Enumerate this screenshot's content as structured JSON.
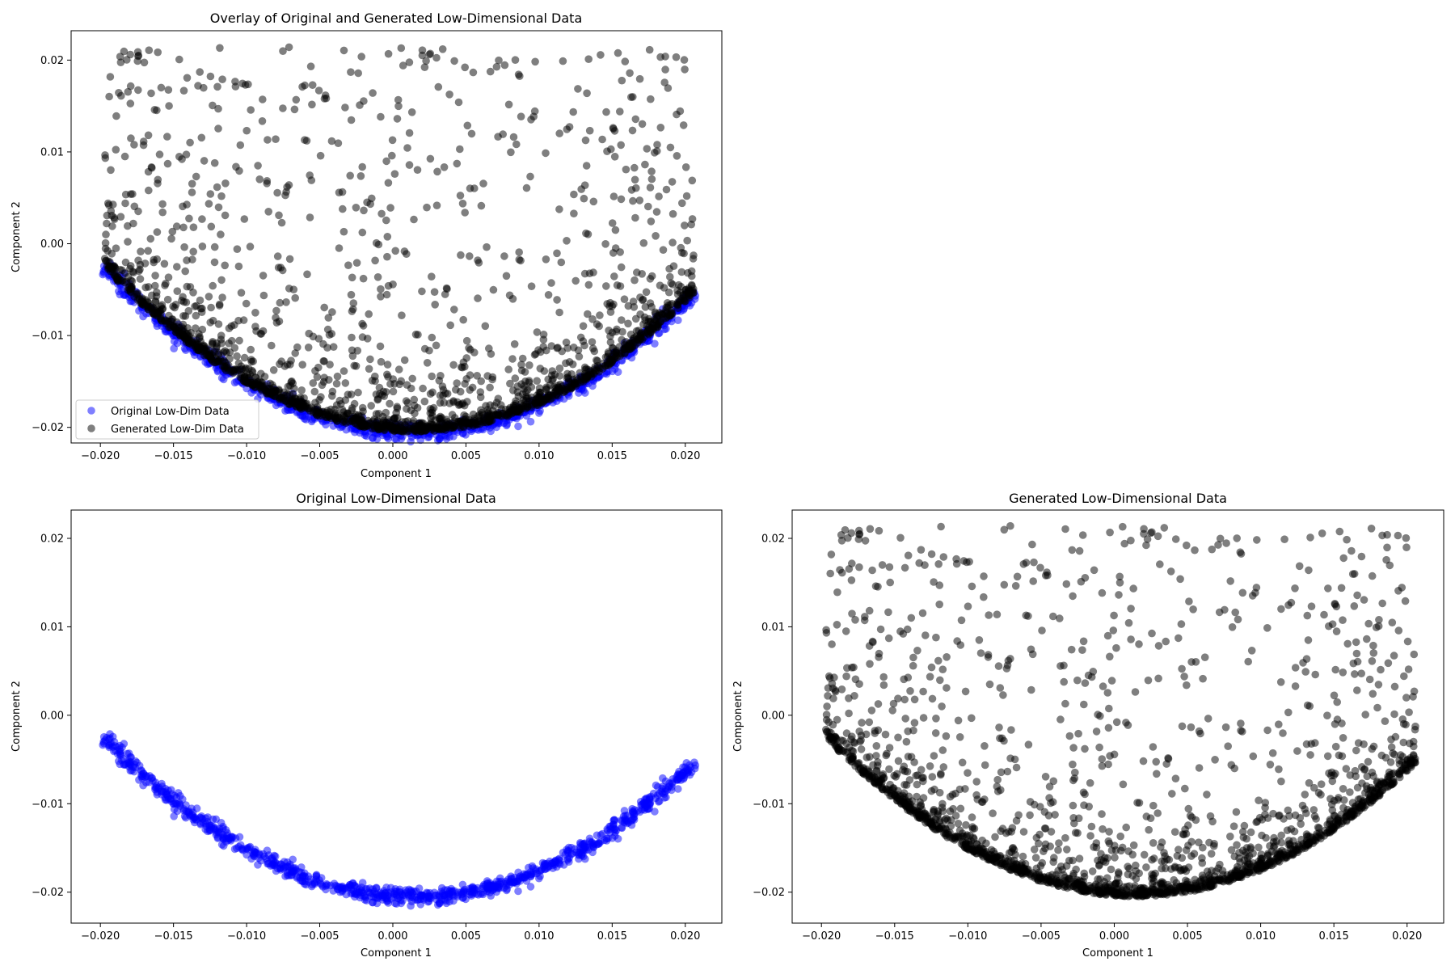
{
  "figure": {
    "background": "#ffffff"
  },
  "chart_data": [
    {
      "type": "scatter",
      "id": "overlay",
      "title": "Overlay of Original and Generated Low-Dimensional Data",
      "xlabel": "Component 1",
      "ylabel": "Component 2",
      "xlim": [
        -0.022,
        0.0225
      ],
      "ylim": [
        -0.0217,
        0.0232
      ],
      "xticks": [
        "−0.020",
        "−0.015",
        "−0.010",
        "−0.005",
        "0.000",
        "0.005",
        "0.010",
        "0.015",
        "0.020"
      ],
      "xtick_values": [
        -0.02,
        -0.015,
        -0.01,
        -0.005,
        0,
        0.005,
        0.01,
        0.015,
        0.02
      ],
      "yticks": [
        "−0.02",
        "−0.01",
        "0.00",
        "0.01",
        "0.02"
      ],
      "ytick_values": [
        -0.02,
        -0.01,
        0,
        0.01,
        0.02
      ],
      "legend": {
        "placement": "lower-left",
        "entries": [
          "Original Low-Dim Data",
          "Generated Low-Dim Data"
        ]
      },
      "series": [
        {
          "name": "Original Low-Dim Data",
          "color": "#0000ff",
          "alpha": 0.5,
          "sample_count": 900,
          "shape": "parabolic band, vertex near (0.0015, -0.0205), ends at (-0.0198, 0.0202) and (0.0206, 0.0228)"
        },
        {
          "name": "Generated Low-Dim Data",
          "color": "#000000",
          "alpha": 0.5,
          "sample_count": 2000,
          "shape": "dense along the same curve plus scatter filling the region above it up to y ≈ 0.021"
        }
      ],
      "grid": false
    },
    {
      "type": "scatter",
      "id": "original",
      "title": "Original Low-Dimensional Data",
      "xlabel": "Component 1",
      "ylabel": "Component 2",
      "xlim": [
        -0.022,
        0.0225
      ],
      "ylim": [
        -0.0235,
        0.0232
      ],
      "xticks": [
        "−0.020",
        "−0.015",
        "−0.010",
        "−0.005",
        "0.000",
        "0.005",
        "0.010",
        "0.015",
        "0.020"
      ],
      "xtick_values": [
        -0.02,
        -0.015,
        -0.01,
        -0.005,
        0,
        0.005,
        0.01,
        0.015,
        0.02
      ],
      "yticks": [
        "−0.02",
        "−0.01",
        "0.00",
        "0.01",
        "0.02"
      ],
      "ytick_values": [
        -0.02,
        -0.01,
        0,
        0.01,
        0.02
      ],
      "series": [
        {
          "color": "#0000ff",
          "alpha": 0.5,
          "sample_count": 900,
          "shape": "parabolic band, vertex near (0.0015, -0.0205)"
        }
      ],
      "grid": false
    },
    {
      "type": "scatter",
      "id": "generated",
      "title": "Generated Low-Dimensional Data",
      "xlabel": "Component 1",
      "ylabel": "Component 2",
      "xlim": [
        -0.022,
        0.0225
      ],
      "ylim": [
        -0.0235,
        0.0232
      ],
      "xticks": [
        "−0.020",
        "−0.015",
        "−0.010",
        "−0.005",
        "0.000",
        "0.005",
        "0.010",
        "0.015",
        "0.020"
      ],
      "xtick_values": [
        -0.02,
        -0.015,
        -0.01,
        -0.005,
        0,
        0.005,
        0.01,
        0.015,
        0.02
      ],
      "yticks": [
        "−0.02",
        "−0.01",
        "0.00",
        "0.01",
        "0.02"
      ],
      "ytick_values": [
        -0.02,
        -0.01,
        0,
        0.01,
        0.02
      ],
      "series": [
        {
          "color": "#000000",
          "alpha": 0.5,
          "sample_count": 2000,
          "shape": "dense along the parabolic curve plus scatter filling the region above it"
        }
      ],
      "grid": false
    }
  ]
}
